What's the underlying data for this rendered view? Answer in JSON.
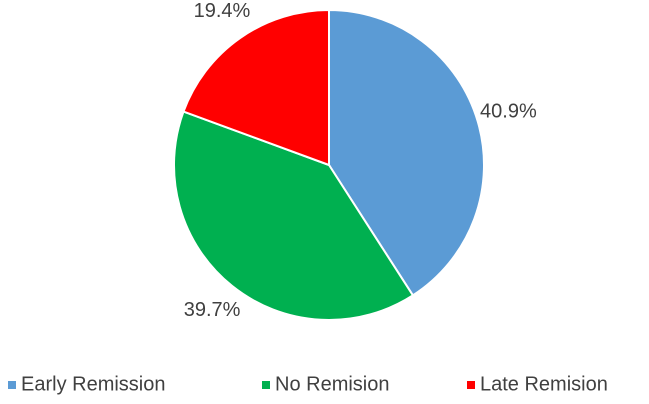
{
  "chart_data": {
    "type": "pie",
    "categories": [
      "Early Remission",
      "No Remision",
      "Late Remision"
    ],
    "values": [
      40.9,
      39.7,
      19.4
    ],
    "value_labels": [
      "40.9%",
      "39.7%",
      "19.4%"
    ],
    "colors": [
      "#5b9bd5",
      "#00b050",
      "#ff0000"
    ],
    "legend": "bottom"
  }
}
